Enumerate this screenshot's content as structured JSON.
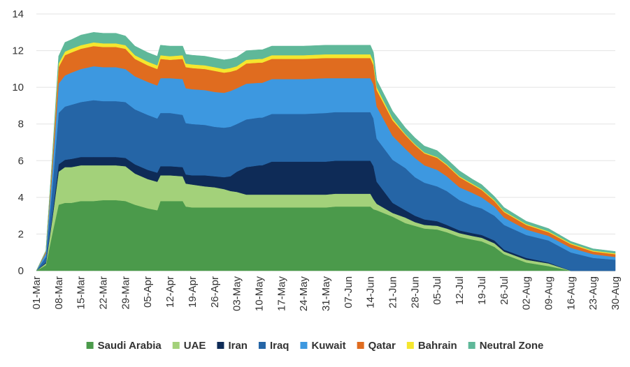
{
  "chart_data": {
    "type": "area",
    "stacked": true,
    "title": "",
    "xlabel": "",
    "ylabel": "",
    "ylim": [
      0,
      14
    ],
    "yticks": [
      0,
      2,
      4,
      6,
      8,
      10,
      12,
      14
    ],
    "grid": true,
    "legend_position": "bottom",
    "x": [
      "01-Mar",
      "04-Mar",
      "06-Mar",
      "08-Mar",
      "10-Mar",
      "12-Mar",
      "15-Mar",
      "19-Mar",
      "22-Mar",
      "26-Mar",
      "29-Mar",
      "01-Apr",
      "05-Apr",
      "08-Apr",
      "09-Apr",
      "12-Apr",
      "16-Apr",
      "17-Apr",
      "19-Apr",
      "23-Apr",
      "26-Apr",
      "29-Apr",
      "01-May",
      "03-May",
      "06-May",
      "10-May",
      "11-May",
      "14-May",
      "17-May",
      "24-May",
      "31-May",
      "03-Jun",
      "07-Jun",
      "14-Jun",
      "15-Jun",
      "16-Jun",
      "21-Jun",
      "25-Jun",
      "28-Jun",
      "01-Jul",
      "05-Jul",
      "08-Jul",
      "12-Jul",
      "16-Jul",
      "19-Jul",
      "23-Jul",
      "26-Jul",
      "02-Aug",
      "09-Aug",
      "16-Aug",
      "23-Aug",
      "30-Aug"
    ],
    "x_tick_labels": [
      "01-Mar",
      "08-Mar",
      "15-Mar",
      "22-Mar",
      "29-Mar",
      "05-Apr",
      "12-Apr",
      "19-Apr",
      "26-Apr",
      "03-May",
      "10-May",
      "17-May",
      "24-May",
      "31-May",
      "07-Jun",
      "14-Jun",
      "21-Jun",
      "28-Jun",
      "05-Jul",
      "12-Jul",
      "19-Jul",
      "26-Jul",
      "02-Aug",
      "09-Aug",
      "16-Aug",
      "23-Aug",
      "30-Aug"
    ],
    "series": [
      {
        "name": "Saudi Arabia",
        "color": "#4b9a4b",
        "values": [
          0,
          0.3,
          2.0,
          3.6,
          3.7,
          3.7,
          3.8,
          3.8,
          3.85,
          3.85,
          3.8,
          3.6,
          3.4,
          3.3,
          3.8,
          3.8,
          3.8,
          3.5,
          3.45,
          3.45,
          3.45,
          3.45,
          3.45,
          3.45,
          3.45,
          3.45,
          3.45,
          3.45,
          3.45,
          3.45,
          3.45,
          3.5,
          3.5,
          3.5,
          3.35,
          3.3,
          2.95,
          2.6,
          2.45,
          2.3,
          2.25,
          2.1,
          1.85,
          1.7,
          1.6,
          1.3,
          0.9,
          0.45,
          0.25,
          0,
          0,
          0
        ]
      },
      {
        "name": "UAE",
        "color": "#a3d17a",
        "values": [
          0,
          0.1,
          0.8,
          1.8,
          1.95,
          1.95,
          1.95,
          1.95,
          1.9,
          1.9,
          1.9,
          1.7,
          1.6,
          1.55,
          1.4,
          1.4,
          1.35,
          1.25,
          1.25,
          1.15,
          1.1,
          1.0,
          0.9,
          0.85,
          0.7,
          0.7,
          0.7,
          0.7,
          0.7,
          0.7,
          0.7,
          0.7,
          0.7,
          0.7,
          0.55,
          0.35,
          0.2,
          0.3,
          0.2,
          0.2,
          0.2,
          0.2,
          0.2,
          0.2,
          0.2,
          0.2,
          0.15,
          0.15,
          0.15,
          0,
          0,
          0
        ]
      },
      {
        "name": "Iran",
        "color": "#0e2b57",
        "values": [
          0,
          0.05,
          0.2,
          0.4,
          0.4,
          0.45,
          0.45,
          0.45,
          0.45,
          0.45,
          0.45,
          0.5,
          0.5,
          0.5,
          0.5,
          0.5,
          0.5,
          0.5,
          0.5,
          0.6,
          0.6,
          0.65,
          0.8,
          1.1,
          1.5,
          1.6,
          1.6,
          1.8,
          1.8,
          1.8,
          1.8,
          1.8,
          1.8,
          1.8,
          1.8,
          1.2,
          0.55,
          0.4,
          0.35,
          0.3,
          0.25,
          0.2,
          0.15,
          0.15,
          0.15,
          0.15,
          0.1,
          0.1,
          0.05,
          0,
          0,
          0
        ]
      },
      {
        "name": "Iraq",
        "color": "#2565a6",
        "values": [
          0,
          0.3,
          1.5,
          2.8,
          2.9,
          2.95,
          3.0,
          3.1,
          3.05,
          3.05,
          3.05,
          3.0,
          3.0,
          2.95,
          2.9,
          2.9,
          2.85,
          2.8,
          2.8,
          2.75,
          2.7,
          2.7,
          2.7,
          2.6,
          2.6,
          2.6,
          2.6,
          2.6,
          2.6,
          2.6,
          2.65,
          2.65,
          2.65,
          2.65,
          2.6,
          2.35,
          2.35,
          2.3,
          2.1,
          2.0,
          1.9,
          1.85,
          1.65,
          1.5,
          1.45,
          1.35,
          1.35,
          1.25,
          1.2,
          1.0,
          0.7,
          0.6
        ]
      },
      {
        "name": "Kuwait",
        "color": "#3d98e0",
        "values": [
          0,
          0.2,
          0.9,
          1.6,
          1.7,
          1.75,
          1.8,
          1.85,
          1.85,
          1.85,
          1.8,
          1.8,
          1.8,
          1.8,
          1.9,
          1.9,
          1.95,
          1.9,
          1.9,
          1.9,
          1.9,
          1.9,
          1.95,
          1.95,
          1.95,
          1.9,
          1.9,
          1.9,
          1.9,
          1.9,
          1.9,
          1.85,
          1.85,
          1.85,
          1.85,
          1.75,
          1.3,
          1.05,
          1.05,
          0.95,
          0.9,
          0.8,
          0.7,
          0.7,
          0.6,
          0.5,
          0.4,
          0.3,
          0.25,
          0.25,
          0.2,
          0.15
        ]
      },
      {
        "name": "Qatar",
        "color": "#e06c1f",
        "values": [
          0,
          0.1,
          0.5,
          0.9,
          1.1,
          1.1,
          1.1,
          1.1,
          1.1,
          1.1,
          1.1,
          0.95,
          0.9,
          0.9,
          1.05,
          1.0,
          1.1,
          1.15,
          1.15,
          1.15,
          1.15,
          1.1,
          1.05,
          1.0,
          1.1,
          1.1,
          1.1,
          1.1,
          1.1,
          1.1,
          1.1,
          1.1,
          1.1,
          1.1,
          1.05,
          0.9,
          0.85,
          0.75,
          0.7,
          0.65,
          0.65,
          0.6,
          0.55,
          0.45,
          0.4,
          0.3,
          0.3,
          0.25,
          0.2,
          0.2,
          0.15,
          0.15
        ]
      },
      {
        "name": "Bahrain",
        "color": "#f5e62e",
        "values": [
          0,
          0,
          0.1,
          0.2,
          0.2,
          0.2,
          0.2,
          0.2,
          0.2,
          0.2,
          0.2,
          0.2,
          0.2,
          0.2,
          0.2,
          0.2,
          0.2,
          0.2,
          0.2,
          0.2,
          0.2,
          0.2,
          0.2,
          0.2,
          0.2,
          0.2,
          0.2,
          0.2,
          0.2,
          0.2,
          0.2,
          0.2,
          0.2,
          0.2,
          0.2,
          0.15,
          0.1,
          0.05,
          0.05,
          0.05,
          0.05,
          0.05,
          0.05,
          0.05,
          0.05,
          0.05,
          0.05,
          0.05,
          0.05,
          0.05,
          0.05,
          0.05
        ]
      },
      {
        "name": "Neutral Zone",
        "color": "#5fb899",
        "values": [
          0,
          0.05,
          0.2,
          0.4,
          0.5,
          0.5,
          0.55,
          0.55,
          0.55,
          0.55,
          0.5,
          0.5,
          0.5,
          0.5,
          0.55,
          0.55,
          0.5,
          0.5,
          0.5,
          0.5,
          0.5,
          0.5,
          0.5,
          0.5,
          0.5,
          0.5,
          0.5,
          0.5,
          0.5,
          0.5,
          0.5,
          0.5,
          0.5,
          0.5,
          0.5,
          0.4,
          0.4,
          0.35,
          0.35,
          0.35,
          0.35,
          0.3,
          0.3,
          0.25,
          0.25,
          0.2,
          0.2,
          0.15,
          0.15,
          0.1,
          0.1,
          0.1
        ]
      }
    ]
  }
}
